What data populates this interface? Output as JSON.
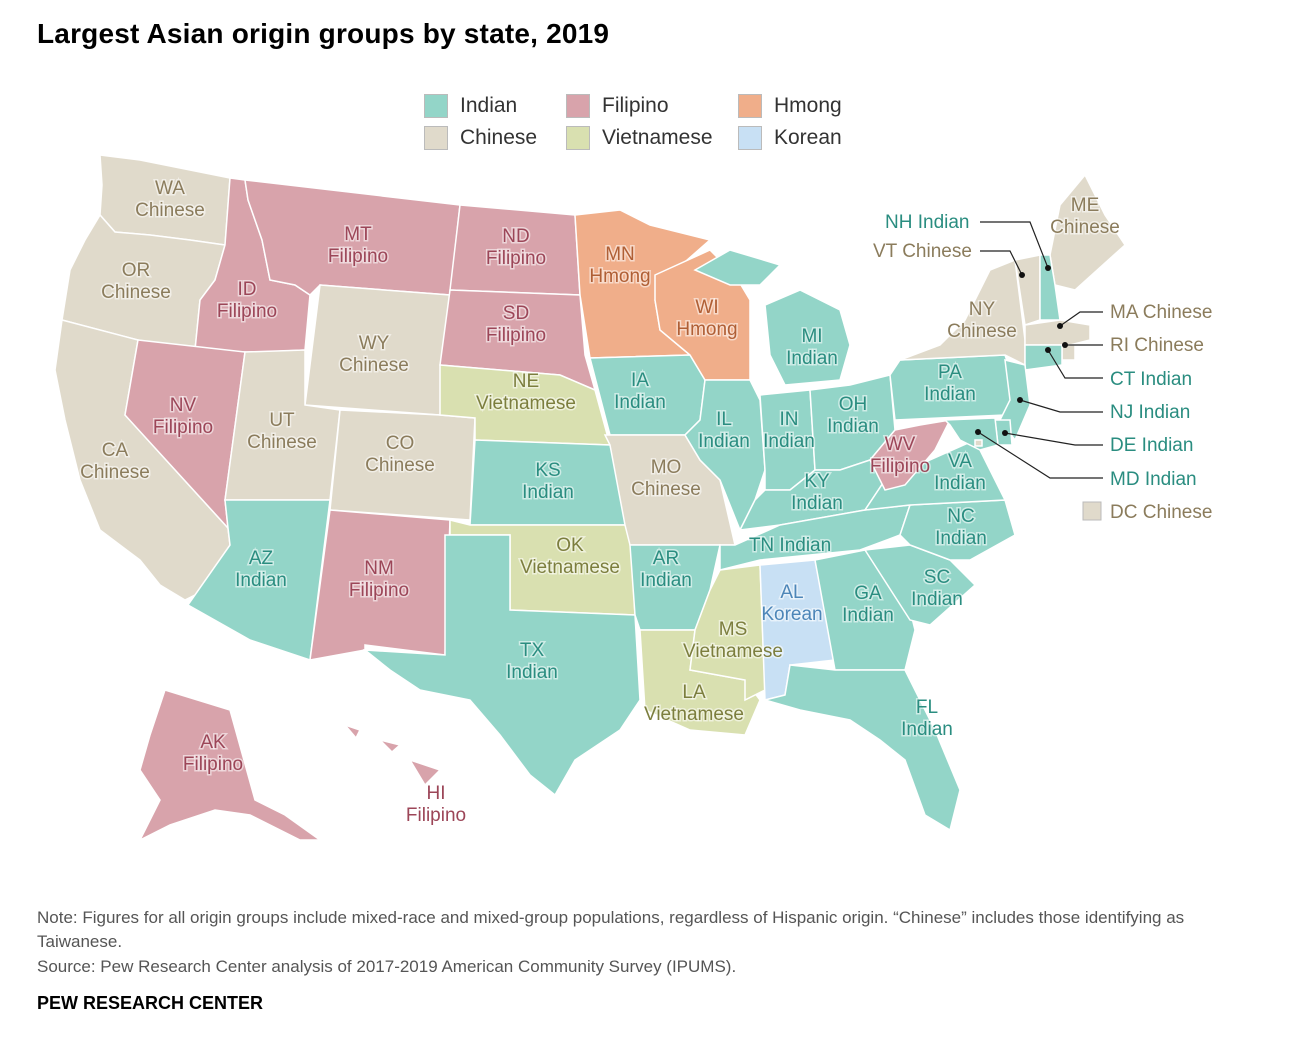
{
  "title": "Largest Asian origin groups by state, 2019",
  "colors": {
    "Indian": "#93d5c8",
    "Chinese": "#e0dacb",
    "Filipino": "#d8a3ab",
    "Vietnamese": "#d9e0b0",
    "Hmong": "#f0ae8a",
    "Korean": "#c8e0f4"
  },
  "label_colors": {
    "Indian": "#2a8d80",
    "Chinese": "#8b7c5c",
    "Filipino": "#9c4658",
    "Vietnamese": "#7c7e3e",
    "Hmong": "#b05f35",
    "Korean": "#4d86b8"
  },
  "legend": [
    {
      "group": "Indian",
      "label": "Indian"
    },
    {
      "group": "Filipino",
      "label": "Filipino"
    },
    {
      "group": "Hmong",
      "label": "Hmong"
    },
    {
      "group": "Chinese",
      "label": "Chinese"
    },
    {
      "group": "Vietnamese",
      "label": "Vietnamese"
    },
    {
      "group": "Korean",
      "label": "Korean"
    }
  ],
  "states": [
    {
      "abbr": "WA",
      "group": "Chinese",
      "name": "Chinese"
    },
    {
      "abbr": "OR",
      "group": "Chinese",
      "name": "Chinese"
    },
    {
      "abbr": "CA",
      "group": "Chinese",
      "name": "Chinese"
    },
    {
      "abbr": "ID",
      "group": "Filipino",
      "name": "Filipino"
    },
    {
      "abbr": "NV",
      "group": "Filipino",
      "name": "Filipino"
    },
    {
      "abbr": "MT",
      "group": "Filipino",
      "name": "Filipino"
    },
    {
      "abbr": "WY",
      "group": "Chinese",
      "name": "Chinese"
    },
    {
      "abbr": "UT",
      "group": "Chinese",
      "name": "Chinese"
    },
    {
      "abbr": "AZ",
      "group": "Indian",
      "name": "Indian"
    },
    {
      "abbr": "CO",
      "group": "Chinese",
      "name": "Chinese"
    },
    {
      "abbr": "NM",
      "group": "Filipino",
      "name": "Filipino"
    },
    {
      "abbr": "ND",
      "group": "Filipino",
      "name": "Filipino"
    },
    {
      "abbr": "SD",
      "group": "Filipino",
      "name": "Filipino"
    },
    {
      "abbr": "NE",
      "group": "Vietnamese",
      "name": "Vietnamese"
    },
    {
      "abbr": "KS",
      "group": "Indian",
      "name": "Indian"
    },
    {
      "abbr": "OK",
      "group": "Vietnamese",
      "name": "Vietnamese"
    },
    {
      "abbr": "TX",
      "group": "Indian",
      "name": "Indian"
    },
    {
      "abbr": "MN",
      "group": "Hmong",
      "name": "Hmong"
    },
    {
      "abbr": "IA",
      "group": "Indian",
      "name": "Indian"
    },
    {
      "abbr": "MO",
      "group": "Chinese",
      "name": "Chinese"
    },
    {
      "abbr": "AR",
      "group": "Indian",
      "name": "Indian"
    },
    {
      "abbr": "LA",
      "group": "Vietnamese",
      "name": "Vietnamese"
    },
    {
      "abbr": "WI",
      "group": "Hmong",
      "name": "Hmong"
    },
    {
      "abbr": "IL",
      "group": "Indian",
      "name": "Indian"
    },
    {
      "abbr": "MS",
      "group": "Vietnamese",
      "name": "Vietnamese"
    },
    {
      "abbr": "MI",
      "group": "Indian",
      "name": "Indian"
    },
    {
      "abbr": "IN",
      "group": "Indian",
      "name": "Indian"
    },
    {
      "abbr": "OH",
      "group": "Indian",
      "name": "Indian"
    },
    {
      "abbr": "KY",
      "group": "Indian",
      "name": "Indian"
    },
    {
      "abbr": "TN",
      "group": "Indian",
      "name": "Indian"
    },
    {
      "abbr": "AL",
      "group": "Korean",
      "name": "Korean"
    },
    {
      "abbr": "GA",
      "group": "Indian",
      "name": "Indian"
    },
    {
      "abbr": "FL",
      "group": "Indian",
      "name": "Indian"
    },
    {
      "abbr": "SC",
      "group": "Indian",
      "name": "Indian"
    },
    {
      "abbr": "NC",
      "group": "Indian",
      "name": "Indian"
    },
    {
      "abbr": "VA",
      "group": "Indian",
      "name": "Indian"
    },
    {
      "abbr": "WV",
      "group": "Filipino",
      "name": "Filipino"
    },
    {
      "abbr": "PA",
      "group": "Indian",
      "name": "Indian"
    },
    {
      "abbr": "NY",
      "group": "Chinese",
      "name": "Chinese"
    },
    {
      "abbr": "ME",
      "group": "Chinese",
      "name": "Chinese"
    },
    {
      "abbr": "AK",
      "group": "Filipino",
      "name": "Filipino"
    },
    {
      "abbr": "HI",
      "group": "Filipino",
      "name": "Filipino"
    },
    {
      "abbr": "VT",
      "group": "Chinese",
      "name": "Chinese"
    },
    {
      "abbr": "NH",
      "group": "Indian",
      "name": "Indian"
    },
    {
      "abbr": "MA",
      "group": "Chinese",
      "name": "Chinese"
    },
    {
      "abbr": "RI",
      "group": "Chinese",
      "name": "Chinese"
    },
    {
      "abbr": "CT",
      "group": "Indian",
      "name": "Indian"
    },
    {
      "abbr": "NJ",
      "group": "Indian",
      "name": "Indian"
    },
    {
      "abbr": "DE",
      "group": "Indian",
      "name": "Indian"
    },
    {
      "abbr": "MD",
      "group": "Indian",
      "name": "Indian"
    },
    {
      "abbr": "DC",
      "group": "Chinese",
      "name": "Chinese"
    }
  ],
  "callouts": [
    {
      "abbr": "NH",
      "text": "NH Indian",
      "group": "Indian"
    },
    {
      "abbr": "VT",
      "text": "VT Chinese",
      "group": "Chinese"
    },
    {
      "abbr": "MA",
      "text": "MA Chinese",
      "group": "Chinese"
    },
    {
      "abbr": "RI",
      "text": "RI Chinese",
      "group": "Chinese"
    },
    {
      "abbr": "CT",
      "text": "CT Indian",
      "group": "Indian"
    },
    {
      "abbr": "NJ",
      "text": "NJ Indian",
      "group": "Indian"
    },
    {
      "abbr": "DE",
      "text": "DE Indian",
      "group": "Indian"
    },
    {
      "abbr": "MD",
      "text": "MD Indian",
      "group": "Indian"
    },
    {
      "abbr": "DC",
      "text": "DC Chinese",
      "group": "Chinese"
    }
  ],
  "note": "Note: Figures for all origin groups include mixed-race and mixed-group populations, regardless of Hispanic origin. “Chinese” includes those identifying as Taiwanese.",
  "source": "Source: Pew Research Center analysis of 2017-2019 American Community Survey (IPUMS).",
  "brand": "PEW RESEARCH CENTER"
}
